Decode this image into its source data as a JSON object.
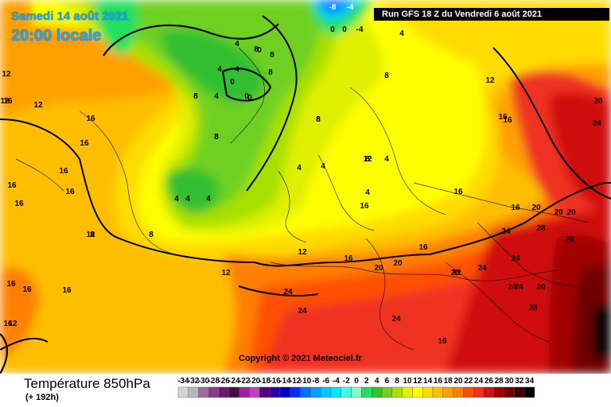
{
  "header": {
    "date": "Samedi 14 août 2021",
    "time": "20:00 locale",
    "run": "Run GFS 18 Z du Vendredi 6 août 2021"
  },
  "copyright": "Copyright © 2021 Meteociel.fr",
  "footer": {
    "title": "Température 850hPa",
    "subtitle": "(+ 192h)"
  },
  "legend": {
    "ticks": [
      "-34",
      "-32",
      "-30",
      "-28",
      "-26",
      "-24",
      "-22",
      "-20",
      "-18",
      "-16",
      "-14",
      "-12",
      "-10",
      "-8",
      "-6",
      "-4",
      "-2",
      "0",
      "2",
      "4",
      "6",
      "8",
      "10",
      "12",
      "14",
      "16",
      "18",
      "20",
      "22",
      "24",
      "26",
      "28",
      "30",
      "32",
      "34"
    ],
    "colors": [
      "#d4d4d4",
      "#b8b8b8",
      "#a06aa0",
      "#8a3a8a",
      "#6a1a6a",
      "#4a0a4a",
      "#a020a0",
      "#c040c0",
      "#5a007a",
      "#2a00a8",
      "#0000d0",
      "#0030ff",
      "#0070ff",
      "#00a0ff",
      "#00c8ff",
      "#00e8ff",
      "#40ffe0",
      "#80ffc0",
      "#20e060",
      "#30c030",
      "#70d020",
      "#a8e000",
      "#e0f000",
      "#ffff00",
      "#ffdc00",
      "#ffbe00",
      "#ffa000",
      "#ff8000",
      "#ff5000",
      "#f03020",
      "#d01010",
      "#a00000",
      "#700000",
      "#400000",
      "#000000"
    ]
  },
  "map_labels": [
    "-8",
    "-4",
    "0",
    "-4",
    "0",
    "4",
    "4",
    "4",
    "0",
    "8",
    "0",
    "4",
    "8",
    "0",
    "4",
    "0",
    "8",
    "8",
    "4",
    "8",
    "8",
    "8",
    "12",
    "12",
    "12",
    "16",
    "16",
    "16",
    "16",
    "16",
    "16",
    "16",
    "16",
    "16",
    "16",
    "12",
    "8",
    "4",
    "4",
    "4",
    "4",
    "4",
    "4",
    "8",
    "8",
    "8",
    "12",
    "16",
    "16",
    "16",
    "16",
    "20",
    "20",
    "20",
    "24",
    "24",
    "24",
    "24",
    "24",
    "24",
    "24",
    "28",
    "28",
    "28",
    "28",
    "20",
    "20",
    "20",
    "16",
    "16",
    "16",
    "24",
    "24",
    "20",
    "12",
    "16",
    "12",
    "12",
    "12",
    "12",
    "8",
    "16"
  ]
}
